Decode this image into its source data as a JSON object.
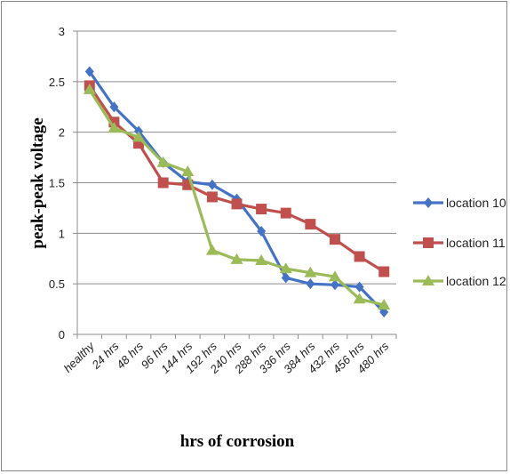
{
  "chart_data": {
    "type": "line",
    "title": "",
    "xlabel": "hrs of corrosion",
    "ylabel": "peak-peak voltage",
    "categories": [
      "healthy",
      "24 hrs",
      "48 hrs",
      "96 hrs",
      "144 hrs",
      "192 hrs",
      "240 hrs",
      "288 hrs",
      "336 hrs",
      "384 hrs",
      "432 hrs",
      "456 hrs",
      "480 hrs"
    ],
    "yticks": [
      "0",
      "0.5",
      "1",
      "1.5",
      "2",
      "2.5",
      "3"
    ],
    "ylim": [
      0,
      3
    ],
    "grid": true,
    "legend_position": "right",
    "series": [
      {
        "name": "location 10",
        "color": "#4472c4",
        "marker": "diamond",
        "values": [
          2.6,
          2.25,
          2.01,
          1.7,
          1.51,
          1.48,
          1.34,
          1.02,
          0.56,
          0.5,
          0.49,
          0.47,
          0.22
        ]
      },
      {
        "name": "location 11",
        "color": "#c0504d",
        "marker": "square",
        "values": [
          2.46,
          2.1,
          1.89,
          1.5,
          1.48,
          1.36,
          1.29,
          1.24,
          1.2,
          1.09,
          0.94,
          0.77,
          0.62
        ]
      },
      {
        "name": "location 12",
        "color": "#9bbb59",
        "marker": "triangle",
        "values": [
          2.42,
          2.04,
          1.95,
          1.7,
          1.61,
          0.83,
          0.74,
          0.73,
          0.65,
          0.61,
          0.57,
          0.35,
          0.29
        ]
      }
    ]
  }
}
